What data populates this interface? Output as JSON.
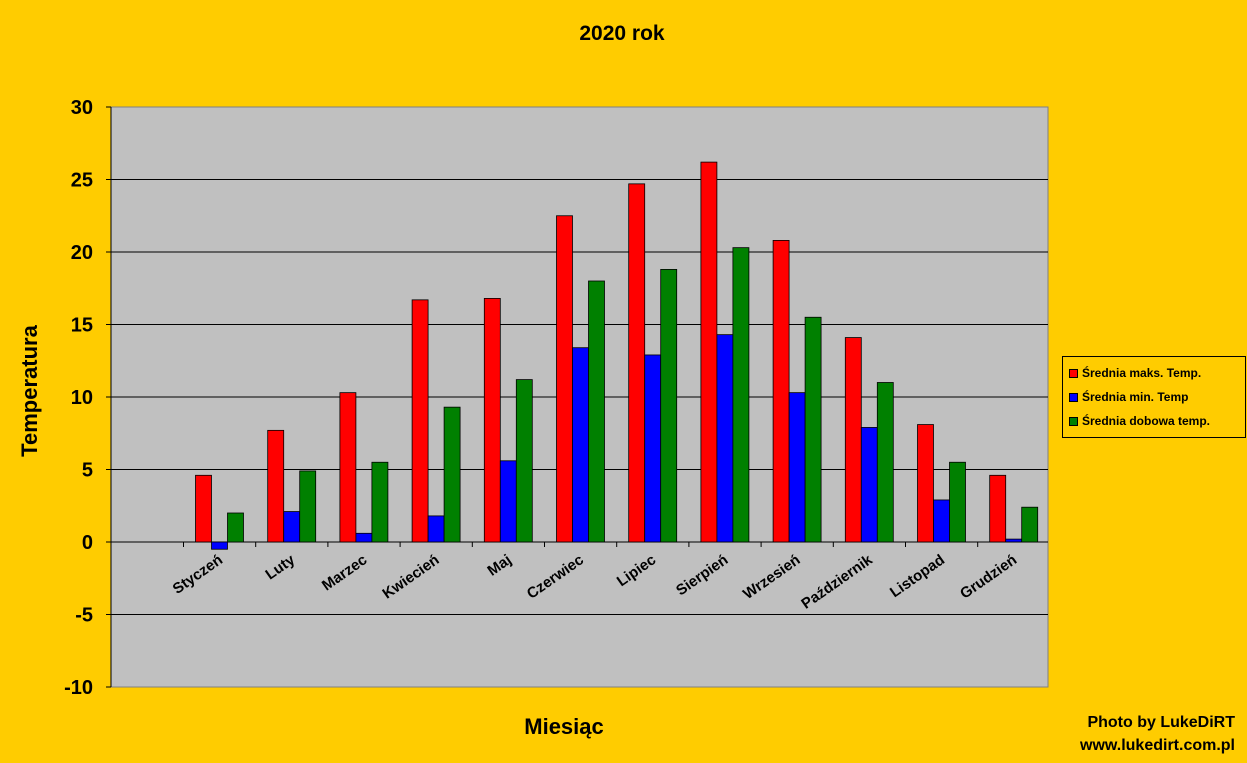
{
  "chart_data": {
    "type": "bar",
    "title": "2020 rok",
    "xlabel": "Miesiąc",
    "ylabel": "Temperatura",
    "ylim": [
      -10,
      30
    ],
    "yticks": [
      30,
      25,
      20,
      15,
      10,
      5,
      0,
      -5,
      -10
    ],
    "grid": true,
    "legend_position": "right",
    "categories": [
      "Styczeń",
      "Luty",
      "Marzec",
      "Kwiecień",
      "Maj",
      "Czerwiec",
      "Lipiec",
      "Sierpień",
      "Wrzesień",
      "Październik",
      "Listopad",
      "Grudzień"
    ],
    "series": [
      {
        "name": "Średnia maks. Temp.",
        "color": "#FF0000",
        "values": [
          4.6,
          7.7,
          10.3,
          16.7,
          16.8,
          22.5,
          24.7,
          26.2,
          20.8,
          14.1,
          8.1,
          4.6
        ]
      },
      {
        "name": "Średnia min. Temp",
        "color": "#0000FF",
        "values": [
          -0.5,
          2.1,
          0.6,
          1.8,
          5.6,
          13.4,
          12.9,
          14.3,
          10.3,
          7.9,
          2.9,
          0.2
        ]
      },
      {
        "name": "Średnia dobowa temp.",
        "color": "#008000",
        "values": [
          2.0,
          4.9,
          5.5,
          9.3,
          11.2,
          18.0,
          18.8,
          20.3,
          15.5,
          11.0,
          5.5,
          2.4
        ]
      }
    ]
  },
  "colors": {
    "background": "#FFCC00",
    "plot_area": "#C0C0C0"
  },
  "credits": {
    "line1": "Photo by LukeDiRT",
    "line2": "www.lukedirt.com.pl"
  }
}
